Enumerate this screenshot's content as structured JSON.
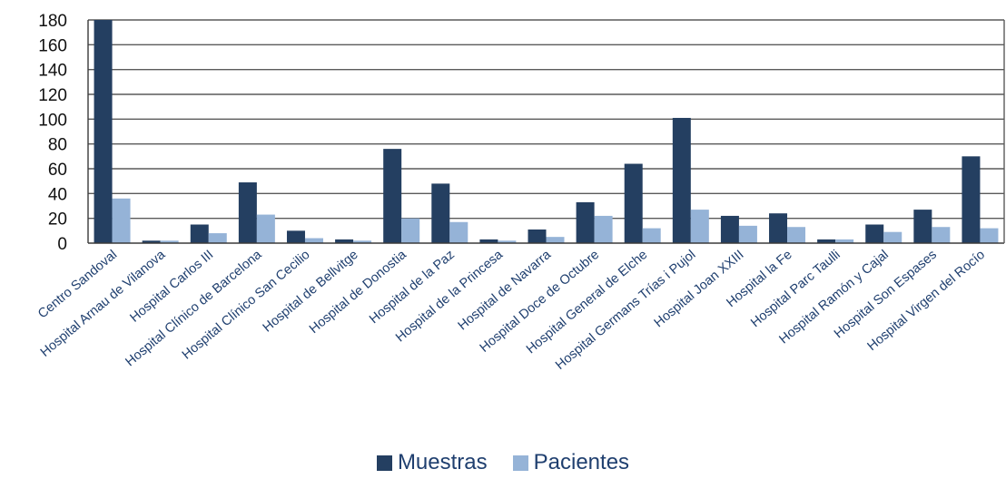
{
  "chart_data": {
    "type": "bar",
    "title": "",
    "xlabel": "",
    "ylabel": "",
    "ylim": [
      0,
      180
    ],
    "yticks": [
      0,
      20,
      40,
      60,
      80,
      100,
      120,
      140,
      160,
      180
    ],
    "grid": "horizontal",
    "legend_position": "bottom",
    "categories": [
      "Centro Sandoval",
      "Hospital Arnau de Vilanova",
      "Hospital Carlos III",
      "Hospital Clínico de Barcelona",
      "Hospital Clínico San Cecilio",
      "Hospital de Bellvitge",
      "Hospital de Donostia",
      "Hospital de la Paz",
      "Hospital de la Princesa",
      "Hospital de Navarra",
      "Hospital Doce de Octubre",
      "Hospital General de Elche",
      "Hospital Germans Trías i Pujol",
      "Hospital Joan XXIII",
      "Hospital la Fe",
      "Hospital Parc Taulli",
      "Hospital Ramón y Cajal",
      "Hospital Son Espases",
      "Hospital Virgen del Rocío"
    ],
    "series": [
      {
        "name": "Muestras",
        "color": "#243f61",
        "values": [
          181,
          2,
          15,
          49,
          10,
          3,
          76,
          48,
          3,
          11,
          33,
          64,
          101,
          22,
          24,
          3,
          15,
          27,
          70
        ]
      },
      {
        "name": "Pacientes",
        "color": "#95b3d7",
        "values": [
          36,
          2,
          8,
          23,
          4,
          2,
          20,
          17,
          2,
          5,
          22,
          12,
          27,
          14,
          13,
          3,
          9,
          13,
          12
        ]
      }
    ]
  }
}
